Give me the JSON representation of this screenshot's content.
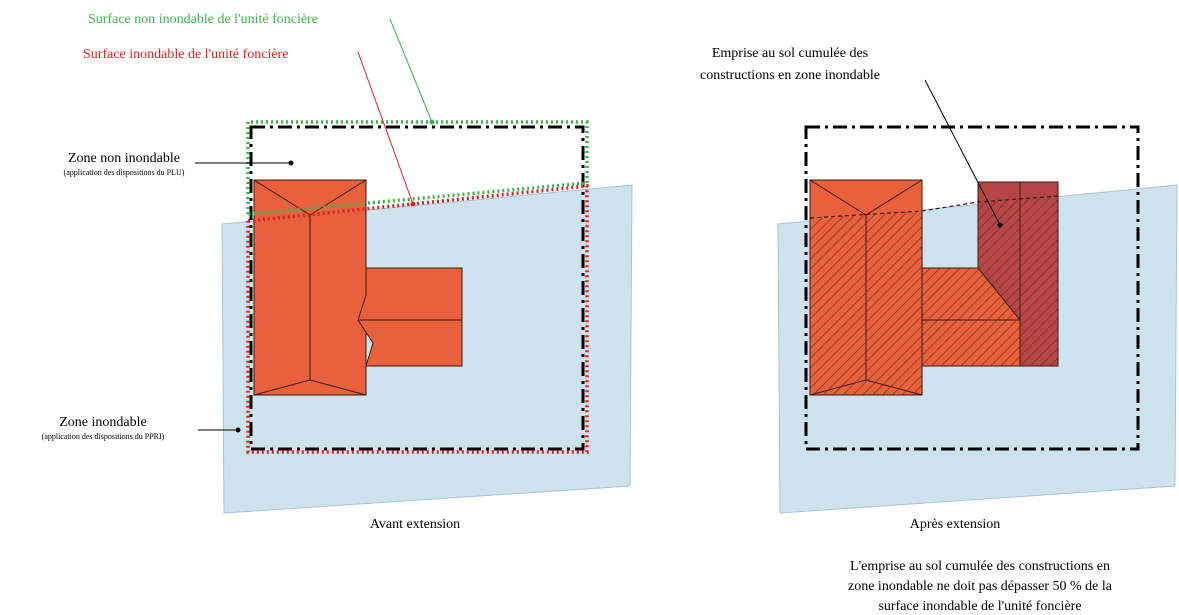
{
  "left_panel": {
    "label_surface_non_inondable": "Surface non inondable de l'unité foncière",
    "label_surface_inondable": "Surface inondable de l'unité foncière",
    "zone_non_inondable_title": "Zone non inondable",
    "zone_non_inondable_subtitle": "(application des dispositions du PLU)",
    "zone_inondable_title": "Zone inondable",
    "zone_inondable_subtitle": "(application des dispositions du PPRI)",
    "caption": "Avant extension"
  },
  "right_panel": {
    "emprise_label_line1": "Emprise au sol cumulée des",
    "emprise_label_line2": "constructions en zone inondable",
    "caption": "Après extension",
    "note_line1": "L'emprise au sol cumulée des constructions en",
    "note_line2": "zone inondable ne doit pas dépasser 50 % de la",
    "note_line3": "surface inondable de l'unité foncière"
  },
  "colors": {
    "flood_zone": "#cfe3ef",
    "building": "#e8603c",
    "extension": "#b84545",
    "green_line": "#3cb44b",
    "red_line": "#e02020",
    "boundary": "#000000"
  }
}
